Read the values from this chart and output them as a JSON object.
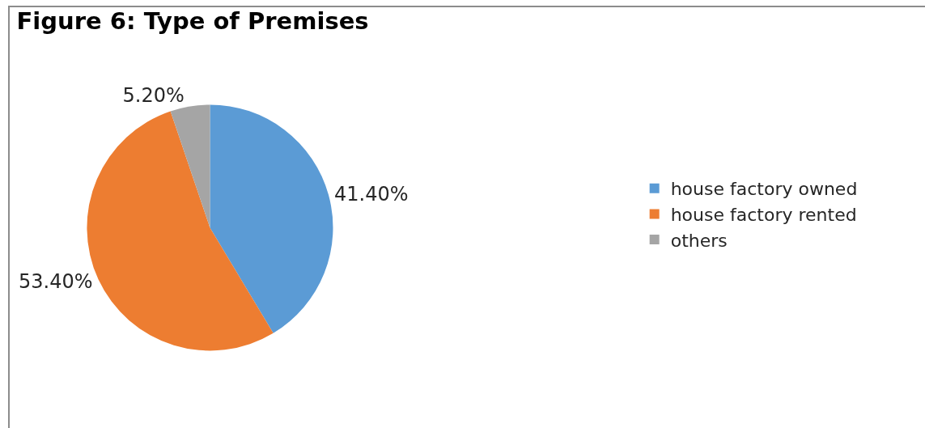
{
  "chart_data": {
    "type": "pie",
    "title": "Figure 6: Type of Premises",
    "categories": [
      "house factory owned",
      "house factory rented",
      "others"
    ],
    "values": [
      41.4,
      53.4,
      5.2
    ],
    "colors": [
      "#5b9bd5",
      "#ed7d31",
      "#a5a5a5"
    ],
    "value_labels": [
      "41.40%",
      "53.40%",
      "5.20%"
    ],
    "legend": "right"
  }
}
